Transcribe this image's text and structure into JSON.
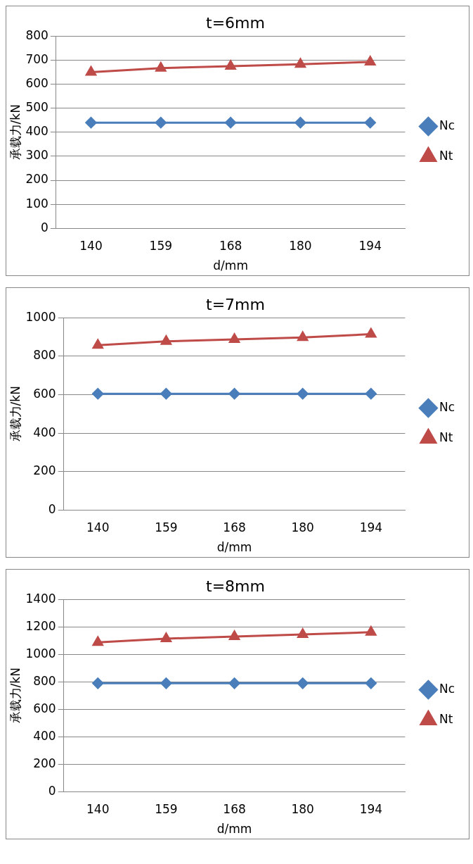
{
  "chart_data": [
    {
      "type": "line",
      "title": "t=6mm",
      "xlabel": "d/mm",
      "ylabel": "承载力/kN",
      "categories": [
        "140",
        "159",
        "168",
        "180",
        "194"
      ],
      "ylim": [
        0,
        800
      ],
      "yticks": [
        0,
        100,
        200,
        300,
        400,
        500,
        600,
        700,
        800
      ],
      "grid": "y",
      "legend": "right",
      "series": [
        {
          "name": "Nc",
          "color": "#4a7ebb",
          "marker": "diamond",
          "values": [
            440,
            440,
            440,
            440,
            440
          ]
        },
        {
          "name": "Nt",
          "color": "#be4b48",
          "marker": "triangle",
          "values": [
            650,
            667,
            675,
            683,
            693
          ]
        }
      ]
    },
    {
      "type": "line",
      "title": "t=7mm",
      "xlabel": "d/mm",
      "ylabel": "承载力/kN",
      "categories": [
        "140",
        "159",
        "168",
        "180",
        "194"
      ],
      "ylim": [
        0,
        1000
      ],
      "yticks": [
        0,
        200,
        400,
        600,
        800,
        1000
      ],
      "grid": "y",
      "legend": "right",
      "series": [
        {
          "name": "Nc",
          "color": "#4a7ebb",
          "marker": "diamond",
          "values": [
            605,
            605,
            605,
            605,
            605
          ]
        },
        {
          "name": "Nt",
          "color": "#be4b48",
          "marker": "triangle",
          "values": [
            858,
            878,
            888,
            898,
            915
          ]
        }
      ]
    },
    {
      "type": "line",
      "title": "t=8mm",
      "xlabel": "d/mm",
      "ylabel": "承载力/kN",
      "categories": [
        "140",
        "159",
        "168",
        "180",
        "194"
      ],
      "ylim": [
        0,
        1400
      ],
      "yticks": [
        0,
        200,
        400,
        600,
        800,
        1000,
        1200,
        1400
      ],
      "grid": "y",
      "legend": "right",
      "series": [
        {
          "name": "Nc",
          "color": "#4a7ebb",
          "marker": "diamond",
          "values": [
            790,
            790,
            790,
            790,
            790
          ]
        },
        {
          "name": "Nt",
          "color": "#be4b48",
          "marker": "triangle",
          "values": [
            1088,
            1115,
            1130,
            1145,
            1162
          ]
        }
      ]
    }
  ]
}
